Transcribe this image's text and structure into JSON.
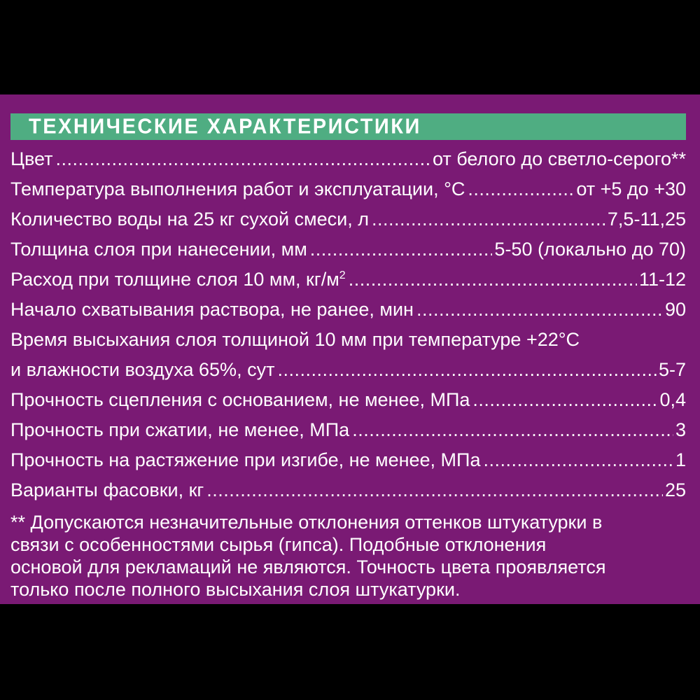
{
  "colors": {
    "frame": "#000000",
    "panel": "#7A1A74",
    "header_bar": "#4FAD82",
    "text": "#FFFFFF"
  },
  "header": {
    "title": "ТЕХНИЧЕСКИЕ ХАРАКТЕРИСТИКИ"
  },
  "specs": [
    {
      "label": "Цвет",
      "value": "от белого до светло-серого**"
    },
    {
      "label": "Температура выполнения работ и эксплуатации, °С",
      "value": "от +5 до +30"
    },
    {
      "label": "Количество воды на 25 кг сухой смеси, л",
      "value": "7,5-11,25"
    },
    {
      "label": "Толщина слоя при нанесении, мм",
      "value": "5-50 (локально до 70)"
    },
    {
      "label": "Расход при толщине слоя 10 мм, кг/м²",
      "value": "11-12"
    },
    {
      "label": "Начало схватывания раствора, не ранее, мин",
      "value": "90"
    },
    {
      "label": "Время высыхания слоя толщиной 10 мм при температуре +22°С",
      "value": null
    },
    {
      "label": "и влажности воздуха 65%, сут",
      "value": "5-7"
    },
    {
      "label": "Прочность сцепления с основанием, не менее, МПа",
      "value": "0,4"
    },
    {
      "label": "Прочность при сжатии, не менее, МПа",
      "value": "3"
    },
    {
      "label": "Прочность на растяжение при изгибе, не менее, МПа",
      "value": "1"
    },
    {
      "label": "Варианты фасовки, кг",
      "value": "25"
    }
  ],
  "footnote": "** Допускаются незначительные отклонения оттенков штукатурки в связи с особенностями сырья (гипса). Подобные отклонения основой для рекламаций не являются. Точность цвета проявляется только после полного высыхания слоя штукатурки."
}
